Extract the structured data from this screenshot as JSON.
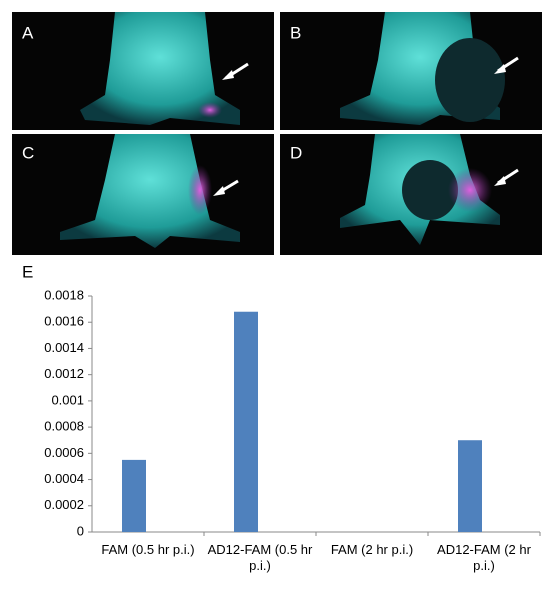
{
  "panels": [
    "A",
    "B",
    "C",
    "D"
  ],
  "chart_data": {
    "type": "bar",
    "panel_label": "E",
    "categories": [
      "FAM (0.5 hr p.i.)",
      "AD12-FAM (0.5 hr p.i.)",
      "FAM (2 hr p.i.)",
      "AD12-FAM (2 hr p.i.)"
    ],
    "values": [
      0.00055,
      0.00168,
      0,
      0.0007
    ],
    "color": "#4f81bd",
    "ylim": [
      0,
      0.0018
    ],
    "yticks": [
      0,
      0.0002,
      0.0004,
      0.0006,
      0.0008,
      0.001,
      0.0012,
      0.0014,
      0.0016,
      0.0018
    ],
    "grid": false
  }
}
